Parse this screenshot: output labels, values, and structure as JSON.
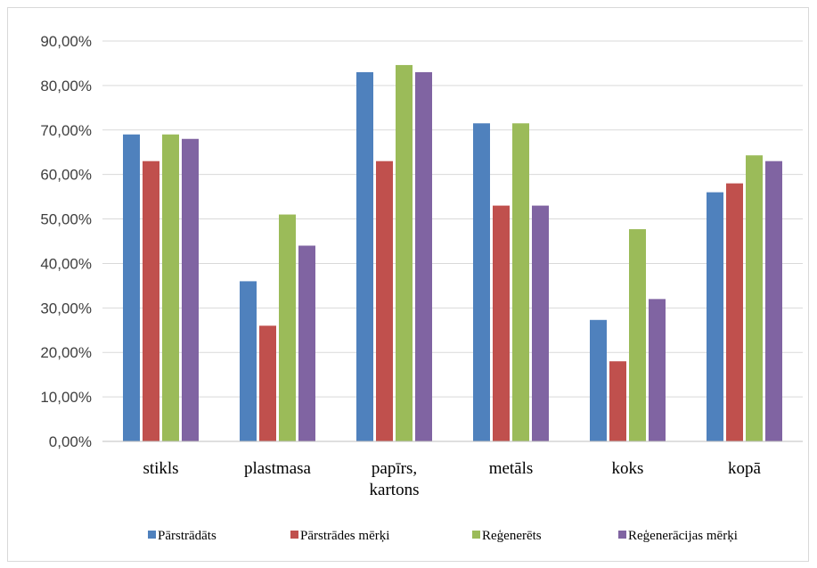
{
  "chart_data": {
    "type": "bar",
    "title": "",
    "xlabel": "",
    "ylabel": "",
    "categories": [
      [
        "stikls"
      ],
      [
        "plastmasa"
      ],
      [
        "papīrs,",
        "kartons"
      ],
      [
        "metāls"
      ],
      [
        "koks"
      ],
      [
        "kopā"
      ]
    ],
    "yticks": [
      "0,00%",
      "10,00%",
      "20,00%",
      "30,00%",
      "40,00%",
      "50,00%",
      "60,00%",
      "70,00%",
      "80,00%",
      "90,00%"
    ],
    "ylim": [
      0,
      90
    ],
    "grid": true,
    "legend_position": "bottom",
    "series": [
      {
        "name": "Pārstrādāts",
        "color": "#4F81BD",
        "values": [
          69,
          36,
          83,
          71.5,
          27.3,
          56
        ]
      },
      {
        "name": "Pārstrādes mērķi",
        "color": "#C0504D",
        "values": [
          63,
          26,
          63,
          53,
          18,
          58
        ]
      },
      {
        "name": "Reģenerēts",
        "color": "#9BBB59",
        "values": [
          69,
          51,
          84.6,
          71.5,
          47.7,
          64.3
        ]
      },
      {
        "name": "Reģenerācijas mērķi",
        "color": "#8064A2",
        "values": [
          68,
          44,
          83,
          53,
          32,
          63
        ]
      }
    ]
  }
}
